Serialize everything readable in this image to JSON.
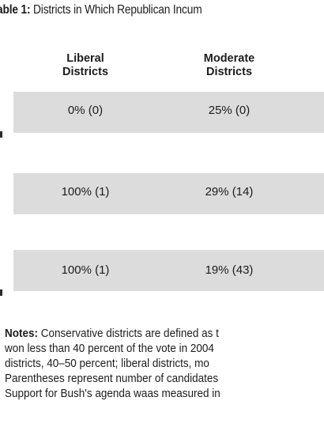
{
  "title": {
    "label": "able 1:",
    "text": " Districts in Which Republican Incum"
  },
  "table": {
    "columns": [
      {
        "line1": "Liberal",
        "line2": "Districts"
      },
      {
        "line1": "Moderate",
        "line2": "Districts"
      }
    ],
    "rows": [
      {
        "liberal": "0% (0)",
        "moderate": "25% (0)"
      },
      {
        "liberal": "100% (1)",
        "moderate": "29% (14)"
      },
      {
        "liberal": "100% (1)",
        "moderate": "19% (43)"
      }
    ]
  },
  "notes": {
    "label": "Notes:",
    "lines": [
      " Conservative districts are defined as t",
      "won less than 40 percent of the vote in 2004",
      "districts, 40–50 percent; liberal districts, mo",
      "Parentheses represent number of candidates",
      "Support for Bush's agenda waas measured in"
    ]
  }
}
